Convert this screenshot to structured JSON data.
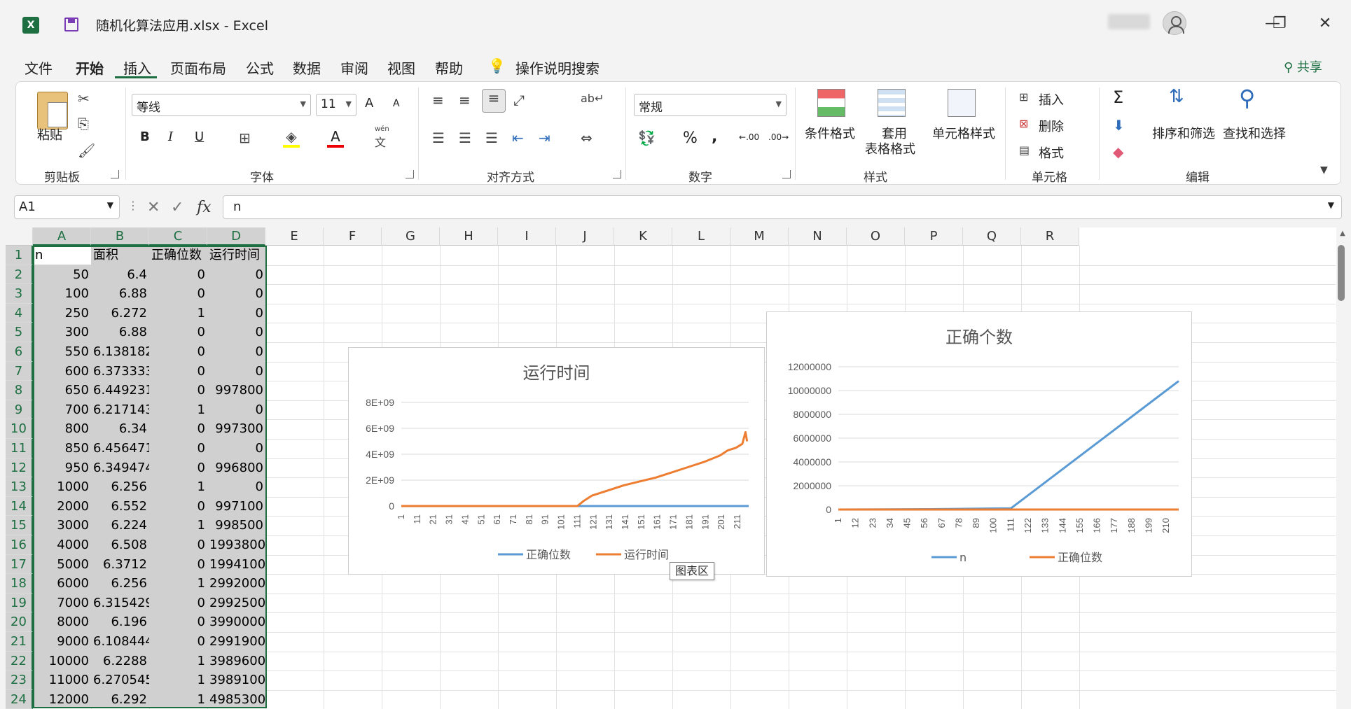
{
  "title_bar": {
    "app_icon_letter": "X",
    "title": "随机化算法应用.xlsx  -  Excel",
    "minimize": "—",
    "restore": "❐",
    "close": "✕"
  },
  "menu": {
    "tabs": [
      "文件",
      "开始",
      "插入",
      "页面布局",
      "公式",
      "数据",
      "审阅",
      "视图",
      "帮助"
    ],
    "search_label": "操作说明搜索",
    "share_label": "共享"
  },
  "ribbon": {
    "clipboard": {
      "paste": "粘贴",
      "group": "剪贴板"
    },
    "font": {
      "family": "等线",
      "size": "11",
      "group": "字体",
      "bold": "B",
      "italic": "I",
      "underline": "U",
      "grow": "A",
      "shrink": "A",
      "pinyin_top": "wén",
      "pinyin_bottom": "文"
    },
    "alignment": {
      "group": "对齐方式"
    },
    "number": {
      "format": "常规",
      "percent": "%",
      "comma": ",",
      "inc_decimal": ".00",
      "dec_decimal": ".00",
      "group": "数字"
    },
    "styles": {
      "conditional": "条件格式",
      "table_line1": "套用",
      "table_line2": "表格格式",
      "cell_styles": "单元格样式",
      "group": "样式"
    },
    "cells": {
      "insert": "插入",
      "delete": "删除",
      "format": "格式",
      "group": "单元格"
    },
    "editing": {
      "sum": "Σ",
      "sort": "排序和筛选",
      "find": "查找和选择",
      "group": "编辑"
    }
  },
  "formula_bar": {
    "name_box": "A1",
    "cancel": "✕",
    "enter": "✓",
    "fx": "fx",
    "content": "n"
  },
  "sheet": {
    "columns": [
      "A",
      "B",
      "C",
      "D",
      "E",
      "F",
      "G",
      "H",
      "I",
      "J",
      "K",
      "L",
      "M",
      "N",
      "O",
      "P",
      "Q",
      "R"
    ],
    "rows": [
      {
        "num": "1",
        "cells": [
          "n",
          "面积",
          "正确位数",
          "运行时间"
        ]
      },
      {
        "num": "2",
        "cells": [
          "50",
          "6.4",
          "0",
          "0"
        ]
      },
      {
        "num": "3",
        "cells": [
          "100",
          "6.88",
          "0",
          "0"
        ]
      },
      {
        "num": "4",
        "cells": [
          "250",
          "6.272",
          "1",
          "0"
        ]
      },
      {
        "num": "5",
        "cells": [
          "300",
          "6.88",
          "0",
          "0"
        ]
      },
      {
        "num": "6",
        "cells": [
          "550",
          "6.138182",
          "0",
          "0"
        ]
      },
      {
        "num": "7",
        "cells": [
          "600",
          "6.373333",
          "0",
          "0"
        ]
      },
      {
        "num": "8",
        "cells": [
          "650",
          "6.449231",
          "0",
          "997800"
        ]
      },
      {
        "num": "9",
        "cells": [
          "700",
          "6.217143",
          "1",
          "0"
        ]
      },
      {
        "num": "10",
        "cells": [
          "800",
          "6.34",
          "0",
          "997300"
        ]
      },
      {
        "num": "11",
        "cells": [
          "850",
          "6.456471",
          "0",
          "0"
        ]
      },
      {
        "num": "12",
        "cells": [
          "950",
          "6.349474",
          "0",
          "996800"
        ]
      },
      {
        "num": "13",
        "cells": [
          "1000",
          "6.256",
          "1",
          "0"
        ]
      },
      {
        "num": "14",
        "cells": [
          "2000",
          "6.552",
          "0",
          "997100"
        ]
      },
      {
        "num": "15",
        "cells": [
          "3000",
          "6.224",
          "1",
          "998500"
        ]
      },
      {
        "num": "16",
        "cells": [
          "4000",
          "6.508",
          "0",
          "1993800"
        ]
      },
      {
        "num": "17",
        "cells": [
          "5000",
          "6.3712",
          "0",
          "1994100"
        ]
      },
      {
        "num": "18",
        "cells": [
          "6000",
          "6.256",
          "1",
          "2992000"
        ]
      },
      {
        "num": "19",
        "cells": [
          "7000",
          "6.315429",
          "0",
          "2992500"
        ]
      },
      {
        "num": "20",
        "cells": [
          "8000",
          "6.196",
          "0",
          "3990000"
        ]
      },
      {
        "num": "21",
        "cells": [
          "9000",
          "6.108444",
          "0",
          "2991900"
        ]
      },
      {
        "num": "22",
        "cells": [
          "10000",
          "6.2288",
          "1",
          "3989600"
        ]
      },
      {
        "num": "23",
        "cells": [
          "11000",
          "6.270545",
          "1",
          "3989100"
        ]
      },
      {
        "num": "24",
        "cells": [
          "12000",
          "6.292",
          "1",
          "4985300"
        ]
      }
    ]
  },
  "tooltip": "图表区",
  "chart_data": [
    {
      "type": "line",
      "title": "运行时间",
      "y_ticks": [
        "0",
        "2E+09",
        "4E+09",
        "6E+09",
        "8E+09"
      ],
      "ylim": [
        0,
        8000000000
      ],
      "x_ticks": [
        "1",
        "11",
        "21",
        "31",
        "41",
        "51",
        "61",
        "71",
        "81",
        "91",
        "101",
        "111",
        "121",
        "131",
        "141",
        "151",
        "161",
        "171",
        "181",
        "191",
        "201",
        "211"
      ],
      "series": [
        {
          "name": "正确位数",
          "color": "#5b9bd5",
          "points": [
            [
              1,
              0
            ],
            [
              218,
              0
            ]
          ]
        },
        {
          "name": "运行时间",
          "color": "#ed7d31",
          "points": [
            [
              1,
              0
            ],
            [
              100,
              0
            ],
            [
              111,
              0
            ],
            [
              115,
              400000000
            ],
            [
              120,
              800000000
            ],
            [
              130,
              1200000000
            ],
            [
              140,
              1600000000
            ],
            [
              150,
              1900000000
            ],
            [
              160,
              2200000000
            ],
            [
              170,
              2600000000
            ],
            [
              180,
              3000000000
            ],
            [
              190,
              3400000000
            ],
            [
              200,
              3900000000
            ],
            [
              205,
              4300000000
            ],
            [
              210,
              4500000000
            ],
            [
              214,
              4800000000
            ],
            [
              216,
              5700000000
            ],
            [
              217,
              5000000000
            ]
          ]
        }
      ]
    },
    {
      "type": "line",
      "title": "正确个数",
      "y_ticks": [
        "0",
        "2000000",
        "4000000",
        "6000000",
        "8000000",
        "10000000",
        "12000000"
      ],
      "ylim": [
        0,
        12000000
      ],
      "x_ticks": [
        "1",
        "12",
        "23",
        "34",
        "45",
        "56",
        "67",
        "78",
        "89",
        "100",
        "111",
        "122",
        "133",
        "144",
        "155",
        "166",
        "177",
        "188",
        "199",
        "210"
      ],
      "series": [
        {
          "name": "n",
          "color": "#5b9bd5",
          "points": [
            [
              1,
              0
            ],
            [
              60,
              30000
            ],
            [
              100,
              90000
            ],
            [
              111,
              100000
            ],
            [
              218,
              10800000
            ]
          ]
        },
        {
          "name": "正确位数",
          "color": "#ed7d31",
          "points": [
            [
              1,
              0
            ],
            [
              218,
              0
            ]
          ]
        }
      ]
    }
  ]
}
